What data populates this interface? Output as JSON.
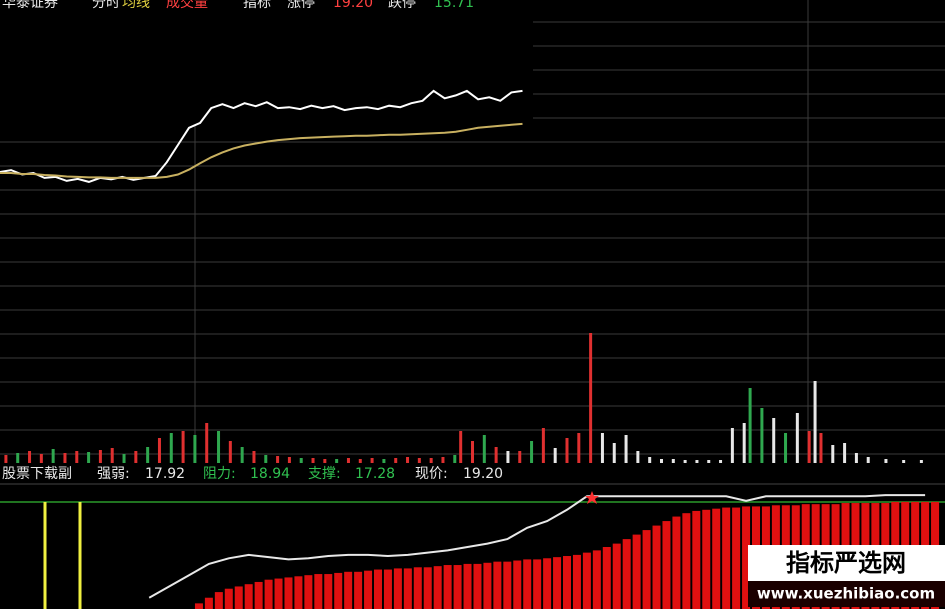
{
  "header": {
    "stock": "华泰证券",
    "tabs": [
      "分时",
      "均线",
      "成交量",
      "指标"
    ],
    "limit_up_label": "涨停",
    "limit_up": "19.20",
    "limit_down_label": "跌停",
    "limit_down": "15.71"
  },
  "indicator": {
    "name": "股票下载副",
    "fields": [
      {
        "label": "强弱:",
        "value": "17.92"
      },
      {
        "label": "阻力:",
        "value": "18.94"
      },
      {
        "label": "支撑:",
        "value": "17.28"
      },
      {
        "label": "现价:",
        "value": "19.20"
      }
    ]
  },
  "watermark": {
    "title": "指标严选网",
    "url": "www.xuezhibiao.com"
  },
  "chart_data": [
    {
      "type": "line",
      "xlim": [
        0,
        85
      ],
      "ylim": [
        15.0,
        20.9
      ],
      "series": [
        {
          "color": "#ffffff",
          "values": [
            17.4,
            17.44,
            17.35,
            17.38,
            17.28,
            17.3,
            17.22,
            17.26,
            17.2,
            17.28,
            17.25,
            17.3,
            17.24,
            17.28,
            17.32,
            17.6,
            17.95,
            18.3,
            18.4,
            18.7,
            18.78,
            18.7,
            18.8,
            18.74,
            18.82,
            18.7,
            18.72,
            18.68,
            18.75,
            18.7,
            18.74,
            18.66,
            18.7,
            18.72,
            18.68,
            18.75,
            18.72,
            18.8,
            18.85,
            19.05,
            18.9,
            18.96,
            19.05,
            18.88,
            18.92,
            18.85,
            19.02,
            19.05
          ]
        },
        {
          "color": "#c8b060",
          "values": [
            17.38,
            17.38,
            17.36,
            17.36,
            17.34,
            17.33,
            17.31,
            17.3,
            17.29,
            17.29,
            17.28,
            17.28,
            17.28,
            17.28,
            17.28,
            17.3,
            17.35,
            17.45,
            17.58,
            17.7,
            17.8,
            17.88,
            17.94,
            17.98,
            18.02,
            18.05,
            18.07,
            18.09,
            18.1,
            18.11,
            18.12,
            18.13,
            18.14,
            18.14,
            18.15,
            18.16,
            18.16,
            18.17,
            18.18,
            18.19,
            18.2,
            18.22,
            18.26,
            18.3,
            18.32,
            18.34,
            18.36,
            18.38
          ]
        }
      ]
    },
    {
      "type": "bar",
      "xlim": [
        0,
        160
      ],
      "ylim": [
        0,
        140
      ],
      "series": [
        {
          "color": "#e03030",
          "x": [
            1,
            5,
            7,
            11,
            13,
            17,
            19,
            23,
            27,
            31,
            35,
            39,
            43,
            47,
            49,
            53,
            55,
            59,
            61,
            63,
            67,
            69,
            71,
            73,
            75,
            78,
            80,
            84,
            88,
            92,
            96,
            98,
            100,
            137,
            139
          ],
          "values": [
            8,
            12,
            9,
            10,
            12,
            13,
            15,
            12,
            25,
            32,
            40,
            22,
            12,
            7,
            6,
            5,
            4,
            5,
            4,
            5,
            5,
            6,
            5,
            5,
            6,
            32,
            22,
            16,
            12,
            35,
            25,
            30,
            130,
            32,
            30
          ]
        },
        {
          "color": "#2fa84f",
          "x": [
            3,
            9,
            15,
            21,
            25,
            29,
            33,
            37,
            41,
            45,
            51,
            57,
            65,
            77,
            82,
            90,
            127,
            129,
            133
          ],
          "values": [
            10,
            14,
            11,
            9,
            16,
            30,
            28,
            32,
            16,
            8,
            5,
            4,
            4,
            8,
            28,
            22,
            75,
            55,
            30
          ]
        },
        {
          "color": "#e8e8e8",
          "x": [
            86,
            94,
            102,
            104,
            106,
            108,
            110,
            112,
            114,
            116,
            118,
            120,
            122,
            124,
            126,
            131,
            135,
            138,
            141,
            143,
            145,
            147,
            150,
            153,
            156
          ],
          "values": [
            12,
            15,
            30,
            20,
            28,
            12,
            6,
            4,
            4,
            3,
            3,
            3,
            3,
            35,
            40,
            45,
            50,
            82,
            18,
            20,
            10,
            6,
            4,
            3,
            3
          ]
        }
      ]
    },
    {
      "type": "combo",
      "xlim": [
        0,
        190
      ],
      "ylim": [
        0,
        110
      ],
      "series": [
        {
          "kind": "bar",
          "color": "#e01010",
          "x": [
            40,
            42,
            44,
            46,
            48,
            50,
            52,
            54,
            56,
            58,
            60,
            62,
            64,
            66,
            68,
            70,
            72,
            74,
            76,
            78,
            80,
            82,
            84,
            86,
            88,
            90,
            92,
            94,
            96,
            98,
            100,
            102,
            104,
            106,
            108,
            110,
            112,
            114,
            116,
            118,
            120,
            122,
            124,
            126,
            128,
            130,
            132,
            134,
            136,
            138,
            140,
            142,
            144,
            146,
            148,
            150,
            152,
            154,
            156,
            158,
            160,
            162,
            164,
            166,
            168,
            170,
            172,
            174,
            176,
            178,
            180,
            182,
            184,
            186,
            188
          ],
          "values": [
            5,
            10,
            15,
            18,
            20,
            22,
            24,
            26,
            27,
            28,
            29,
            30,
            31,
            31,
            32,
            33,
            33,
            34,
            35,
            35,
            36,
            36,
            37,
            37,
            38,
            39,
            39,
            40,
            40,
            41,
            42,
            42,
            43,
            44,
            44,
            45,
            46,
            47,
            48,
            50,
            52,
            55,
            58,
            62,
            66,
            70,
            74,
            78,
            82,
            85,
            87,
            88,
            89,
            90,
            90,
            91,
            91,
            91,
            92,
            92,
            92,
            93,
            93,
            93,
            93,
            94,
            94,
            94,
            94,
            94,
            95,
            95,
            95,
            95,
            95
          ]
        },
        {
          "kind": "line",
          "color": "#e8e8e8",
          "x": [
            30,
            34,
            38,
            42,
            46,
            50,
            54,
            58,
            62,
            66,
            70,
            74,
            78,
            82,
            86,
            90,
            94,
            98,
            102,
            106,
            110,
            114,
            118,
            122,
            126,
            130,
            134,
            138,
            142,
            146,
            150,
            154,
            158,
            162,
            166,
            170,
            174,
            178,
            182,
            186
          ],
          "values": [
            10,
            20,
            30,
            40,
            45,
            48,
            46,
            44,
            45,
            47,
            48,
            48,
            47,
            48,
            50,
            52,
            55,
            58,
            62,
            72,
            78,
            88,
            100,
            100,
            100,
            100,
            100,
            100,
            100,
            100,
            96,
            100,
            100,
            100,
            100,
            100,
            100,
            101,
            101,
            101
          ]
        }
      ]
    }
  ]
}
